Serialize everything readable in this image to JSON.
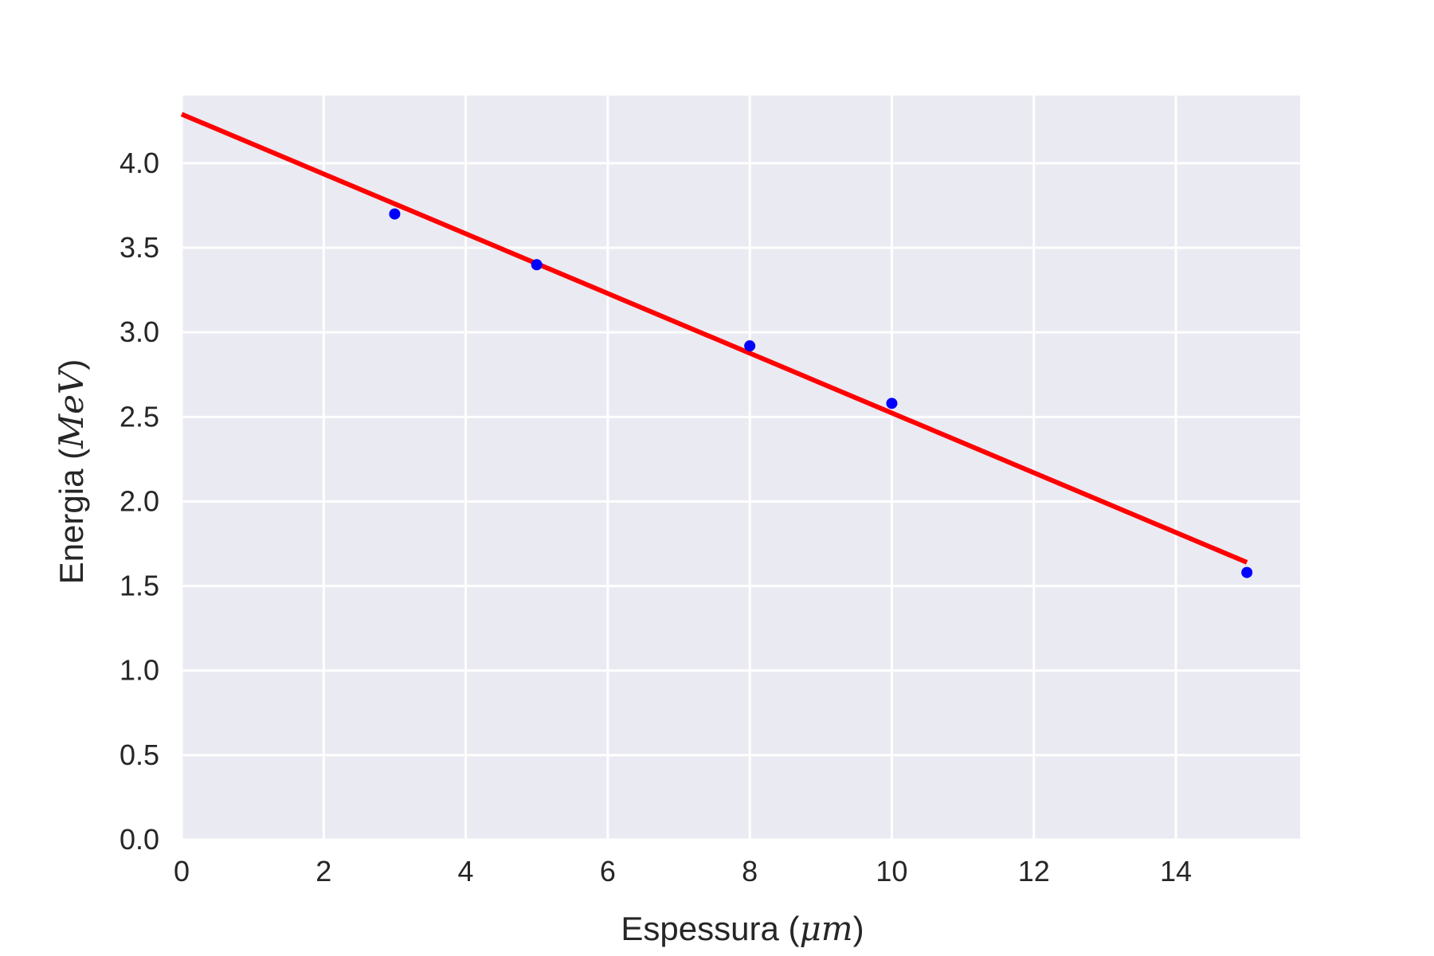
{
  "chart_data": {
    "type": "scatter",
    "title": "",
    "xlabel": "Espessura",
    "xlabel_unit": "μm",
    "ylabel": "Energia",
    "ylabel_unit": "MeV",
    "xlim": [
      0,
      15.75
    ],
    "ylim": [
      0,
      4.4
    ],
    "xticks": [
      0,
      2,
      4,
      6,
      8,
      10,
      12,
      14
    ],
    "xtick_labels": [
      "0",
      "2",
      "4",
      "6",
      "8",
      "10",
      "12",
      "14"
    ],
    "yticks": [
      0,
      0.5,
      1.0,
      1.5,
      2.0,
      2.5,
      3.0,
      3.5,
      4.0
    ],
    "ytick_labels": [
      "0.0",
      "0.5",
      "1.0",
      "1.5",
      "2.0",
      "2.5",
      "3.0",
      "3.5",
      "4.0"
    ],
    "grid": true,
    "series": [
      {
        "kind": "scatter",
        "color": "#0000ff",
        "x": [
          3,
          5,
          8,
          10,
          15
        ],
        "y": [
          3.7,
          3.4,
          2.92,
          2.58,
          1.58
        ]
      },
      {
        "kind": "line",
        "color": "#ff0000",
        "x": [
          0,
          15
        ],
        "y": [
          4.29,
          1.64
        ]
      }
    ],
    "colors": {
      "plot_background": "#eaeaf2",
      "grid": "#ffffff",
      "text": "#262626"
    }
  }
}
